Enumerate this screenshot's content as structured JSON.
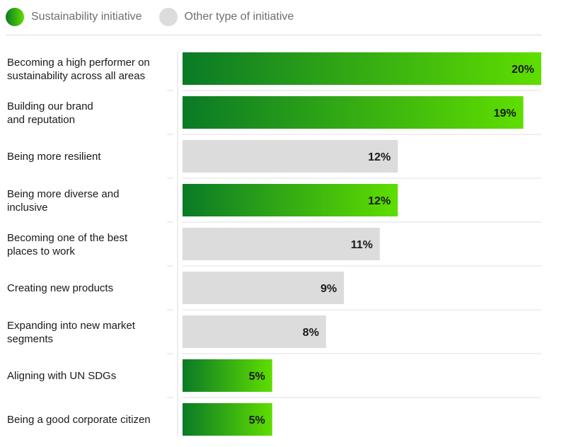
{
  "legend": {
    "sustainability": {
      "label": "Sustainability initiative",
      "color_start": "#0a7a26",
      "color_end": "#5fde00"
    },
    "other": {
      "label": "Other type of initiative",
      "color": "#dcdcdc"
    }
  },
  "chart_data": {
    "type": "bar",
    "orientation": "horizontal",
    "xlim": [
      0,
      20
    ],
    "unit": "%",
    "categories": [
      [
        "Becoming a high performer on",
        "sustainability across all areas"
      ],
      [
        "Building our brand",
        "and reputation"
      ],
      [
        "Being more resilient"
      ],
      [
        "Being more diverse and",
        "inclusive"
      ],
      [
        "Becoming one of the best",
        "places to work"
      ],
      [
        "Creating new products"
      ],
      [
        "Expanding into new market",
        "segments"
      ],
      [
        "Aligning with UN SDGs"
      ],
      [
        "Being a good corporate citizen"
      ]
    ],
    "values": [
      20,
      19,
      12,
      12,
      11,
      9,
      8,
      5,
      5
    ],
    "value_labels": [
      "20%",
      "19%",
      "12%",
      "12%",
      "11%",
      "9%",
      "8%",
      "5%",
      "5%"
    ],
    "types": [
      "sustainability",
      "sustainability",
      "other",
      "sustainability",
      "other",
      "other",
      "other",
      "sustainability",
      "sustainability"
    ]
  }
}
